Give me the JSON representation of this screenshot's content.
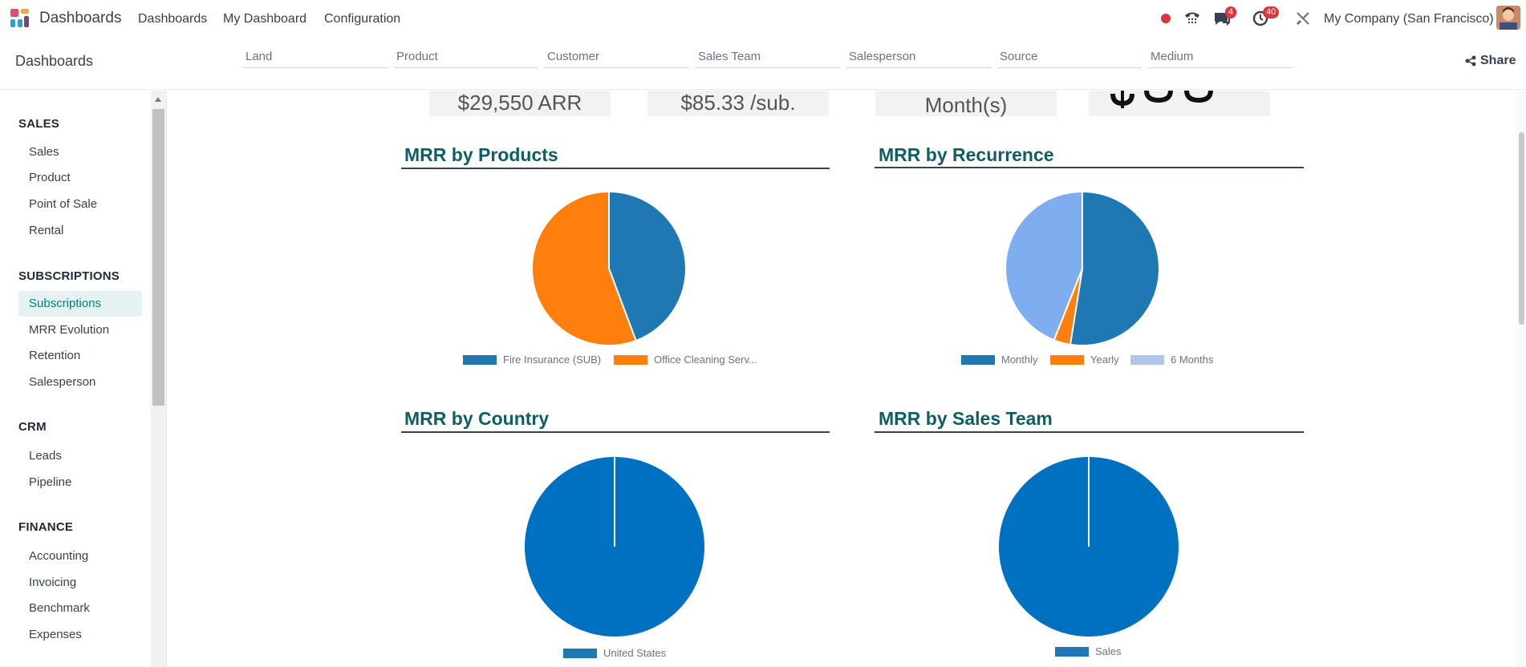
{
  "navbar": {
    "app_title": "Dashboards",
    "menu": [
      "Dashboards",
      "My Dashboard",
      "Configuration"
    ],
    "chat_badge": "4",
    "activity_badge": "40",
    "company": "My Company (San Francisco)"
  },
  "control_panel": {
    "breadcrumb": "Dashboards",
    "filters": [
      "Land",
      "Product",
      "Customer",
      "Sales Team",
      "Salesperson",
      "Source",
      "Medium"
    ],
    "share_label": "Share"
  },
  "sidebar": {
    "sections": [
      {
        "title": "SALES",
        "items": [
          "Sales",
          "Product",
          "Point of Sale",
          "Rental"
        ]
      },
      {
        "title": "SUBSCRIPTIONS",
        "items": [
          "Subscriptions",
          "MRR Evolution",
          "Retention",
          "Salesperson"
        ]
      },
      {
        "title": "CRM",
        "items": [
          "Leads",
          "Pipeline"
        ]
      },
      {
        "title": "FINANCE",
        "items": [
          "Accounting",
          "Invoicing",
          "Benchmark",
          "Expenses"
        ]
      }
    ],
    "active_item": "Subscriptions"
  },
  "kpis": {
    "arr": "$29,550 ARR",
    "per_sub": "$85.33 /sub.",
    "months": "Month(s)"
  },
  "chart_data": [
    {
      "type": "pie",
      "title": "MRR by Products",
      "categories": [
        "Fire Insurance (SUB)",
        "Office Cleaning Serv..."
      ],
      "values": [
        44.3,
        55.7
      ],
      "colors": [
        "#1f77b4",
        "#ff7f0e"
      ]
    },
    {
      "type": "pie",
      "title": "MRR by Recurrence",
      "categories": [
        "Monthly",
        "Yearly",
        "6 Months"
      ],
      "values": [
        52.5,
        3.5,
        44.0
      ],
      "colors": [
        "#1f77b4",
        "#ff7f0e",
        "#7eaef0"
      ],
      "legend_colors": [
        "#1f77b4",
        "#ff7f0e",
        "#aec7e8"
      ]
    },
    {
      "type": "pie",
      "title": "MRR by Country",
      "categories": [
        "United States"
      ],
      "values": [
        100
      ],
      "colors": [
        "#0070c0"
      ],
      "legend_colors": [
        "#1f77b4"
      ]
    },
    {
      "type": "pie",
      "title": "MRR by Sales Team",
      "categories": [
        "Sales"
      ],
      "values": [
        100
      ],
      "colors": [
        "#0070c0"
      ],
      "legend_colors": [
        "#1f77b4"
      ]
    }
  ]
}
